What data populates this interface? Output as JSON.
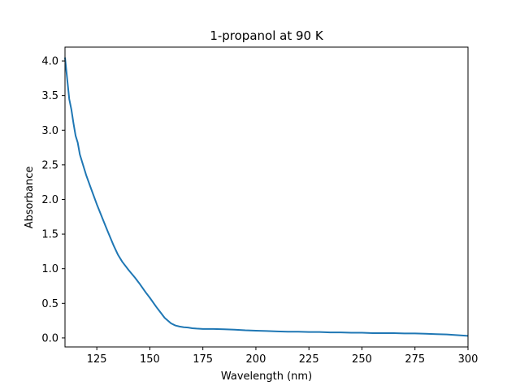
{
  "chart_data": {
    "type": "line",
    "title": "1-propanol at 90 K",
    "xlabel": "Wavelength (nm)",
    "ylabel": "Absorbance",
    "xlim": [
      110,
      300
    ],
    "ylim": [
      -0.13,
      4.2
    ],
    "xticks": [
      125,
      150,
      175,
      200,
      225,
      250,
      275,
      300
    ],
    "yticks": [
      0.0,
      0.5,
      1.0,
      1.5,
      2.0,
      2.5,
      3.0,
      3.5,
      4.0
    ],
    "grid": false,
    "line_color": "#1f77b4",
    "series": [
      {
        "x": [
          110,
          111,
          112,
          113,
          114,
          115,
          116,
          117,
          118,
          120,
          122,
          125,
          128,
          130,
          133,
          135,
          137,
          140,
          143,
          145,
          148,
          150,
          153,
          155,
          157,
          160,
          162,
          164,
          166,
          168,
          170,
          172,
          175,
          180,
          185,
          190,
          195,
          200,
          205,
          210,
          215,
          220,
          225,
          230,
          235,
          240,
          245,
          250,
          255,
          260,
          265,
          270,
          275,
          280,
          285,
          290,
          295,
          300
        ],
        "y": [
          4.05,
          3.75,
          3.45,
          3.3,
          3.1,
          2.92,
          2.82,
          2.65,
          2.55,
          2.35,
          2.18,
          1.93,
          1.7,
          1.55,
          1.33,
          1.2,
          1.1,
          0.98,
          0.87,
          0.79,
          0.66,
          0.58,
          0.45,
          0.37,
          0.29,
          0.21,
          0.18,
          0.165,
          0.155,
          0.15,
          0.14,
          0.135,
          0.13,
          0.13,
          0.125,
          0.12,
          0.11,
          0.105,
          0.1,
          0.095,
          0.09,
          0.09,
          0.085,
          0.085,
          0.08,
          0.08,
          0.075,
          0.075,
          0.07,
          0.07,
          0.07,
          0.065,
          0.065,
          0.06,
          0.055,
          0.05,
          0.04,
          0.03
        ]
      }
    ]
  }
}
